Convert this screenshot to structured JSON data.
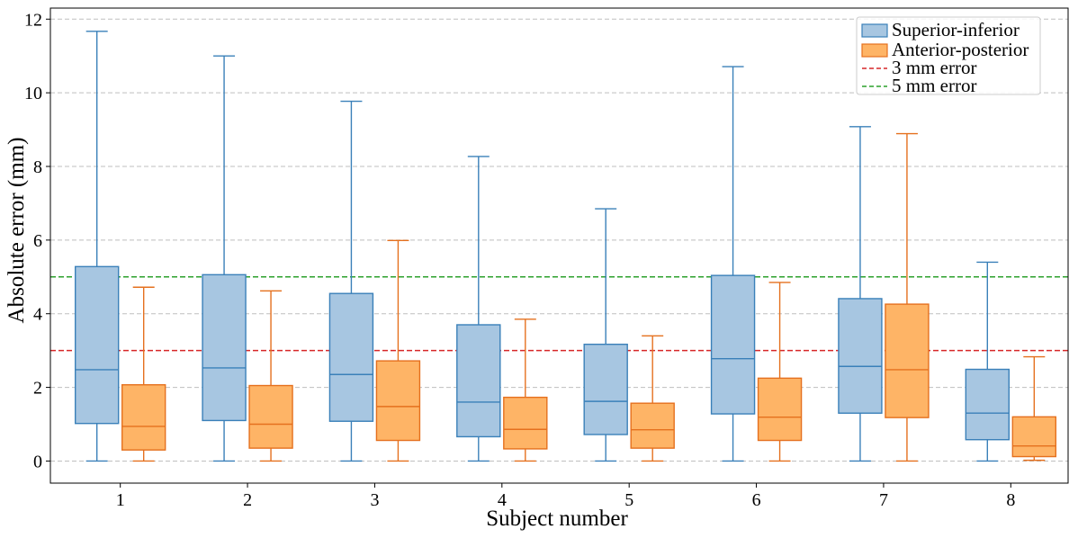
{
  "chart_data": {
    "type": "boxplot",
    "xlabel": "Subject number",
    "ylabel": "Absolute error (mm)",
    "categories": [
      "1",
      "2",
      "3",
      "4",
      "5",
      "6",
      "7",
      "8"
    ],
    "ylim": [
      -0.6,
      12.3
    ],
    "yticks": [
      0,
      2,
      4,
      6,
      8,
      10,
      12
    ],
    "grid": "horizontal dashed",
    "legend_position": "top-right",
    "series": [
      {
        "name": "Superior-inferior",
        "face_color": "#a7c6e1",
        "edge_color": "#3a80b9",
        "boxes": [
          {
            "whislo": 0,
            "q1": 1.02,
            "med": 2.48,
            "q3": 5.28,
            "whishi": 11.67
          },
          {
            "whislo": 0,
            "q1": 1.1,
            "med": 2.53,
            "q3": 5.06,
            "whishi": 11.0
          },
          {
            "whislo": 0,
            "q1": 1.08,
            "med": 2.35,
            "q3": 4.55,
            "whishi": 9.77
          },
          {
            "whislo": 0,
            "q1": 0.66,
            "med": 1.6,
            "q3": 3.7,
            "whishi": 8.27
          },
          {
            "whislo": 0,
            "q1": 0.72,
            "med": 1.62,
            "q3": 3.17,
            "whishi": 6.85
          },
          {
            "whislo": 0,
            "q1": 1.28,
            "med": 2.78,
            "q3": 5.04,
            "whishi": 10.71
          },
          {
            "whislo": 0,
            "q1": 1.3,
            "med": 2.57,
            "q3": 4.41,
            "whishi": 9.08
          },
          {
            "whislo": 0,
            "q1": 0.58,
            "med": 1.3,
            "q3": 2.49,
            "whishi": 5.4
          }
        ]
      },
      {
        "name": "Anterior-posterior",
        "face_color": "#feb466",
        "edge_color": "#e5701e",
        "boxes": [
          {
            "whislo": 0,
            "q1": 0.3,
            "med": 0.94,
            "q3": 2.07,
            "whishi": 4.72
          },
          {
            "whislo": 0,
            "q1": 0.35,
            "med": 1.0,
            "q3": 2.05,
            "whishi": 4.62
          },
          {
            "whislo": 0,
            "q1": 0.56,
            "med": 1.48,
            "q3": 2.72,
            "whishi": 5.99
          },
          {
            "whislo": 0,
            "q1": 0.33,
            "med": 0.86,
            "q3": 1.73,
            "whishi": 3.85
          },
          {
            "whislo": 0,
            "q1": 0.35,
            "med": 0.85,
            "q3": 1.57,
            "whishi": 3.4
          },
          {
            "whislo": 0,
            "q1": 0.56,
            "med": 1.19,
            "q3": 2.25,
            "whishi": 4.85
          },
          {
            "whislo": 0,
            "q1": 1.18,
            "med": 2.48,
            "q3": 4.26,
            "whishi": 8.89
          },
          {
            "whislo": 0.02,
            "q1": 0.12,
            "med": 0.41,
            "q3": 1.2,
            "whishi": 2.83
          }
        ]
      }
    ],
    "reference_lines": [
      {
        "name": "3 mm error",
        "y": 3,
        "color": "#d62728",
        "style": "dashed"
      },
      {
        "name": "5 mm error",
        "y": 5,
        "color": "#2ca02c",
        "style": "dashed"
      }
    ]
  }
}
